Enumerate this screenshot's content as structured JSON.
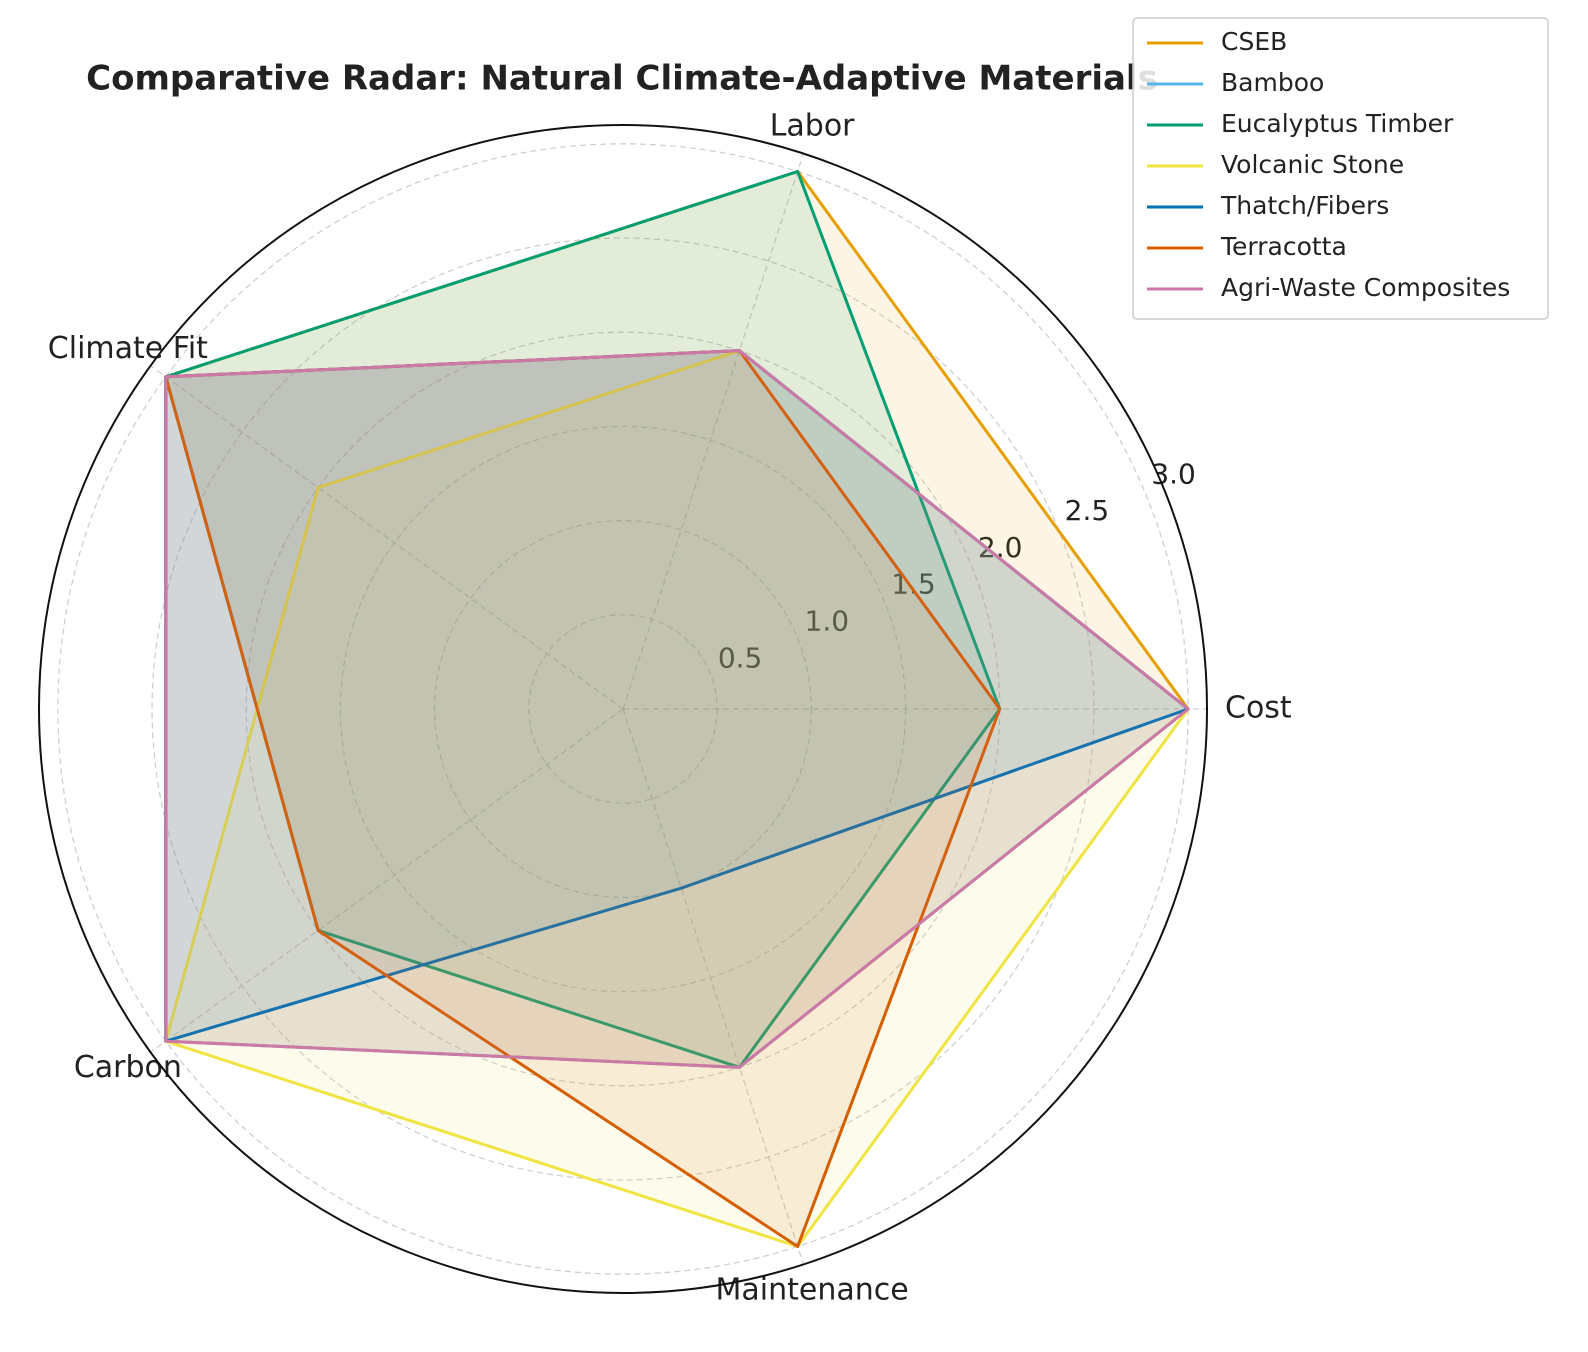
{
  "chart_data": {
    "type": "radar",
    "title": "Comparative Radar: Natural Climate-Adaptive Materials",
    "categories": [
      "Cost",
      "Labor",
      "Climate Fit",
      "Carbon",
      "Maintenance"
    ],
    "series": [
      {
        "name": "CSEB",
        "color": "#E69F00",
        "values": [
          3,
          3,
          3,
          3,
          2
        ]
      },
      {
        "name": "Bamboo",
        "color": "#56B4E9",
        "values": [
          3,
          2,
          3,
          3,
          2
        ]
      },
      {
        "name": "Eucalyptus Timber",
        "color": "#009E73",
        "values": [
          2,
          3,
          3,
          2,
          2
        ]
      },
      {
        "name": "Volcanic Stone",
        "color": "#F0E442",
        "values": [
          3,
          2,
          2,
          3,
          3
        ]
      },
      {
        "name": "Thatch/Fibers",
        "color": "#0072B2",
        "values": [
          3,
          2,
          3,
          3,
          1
        ]
      },
      {
        "name": "Terracotta",
        "color": "#D55E00",
        "values": [
          2,
          2,
          3,
          2,
          3
        ]
      },
      {
        "name": "Agri-Waste Composites",
        "color": "#CC79A7",
        "values": [
          3,
          2,
          3,
          3,
          2
        ]
      }
    ],
    "ylim": [
      0,
      3.1
    ],
    "yticks": [
      0.5,
      1.0,
      1.5,
      2.0,
      2.5,
      3.0
    ],
    "grid": true,
    "legend": "upper right"
  }
}
